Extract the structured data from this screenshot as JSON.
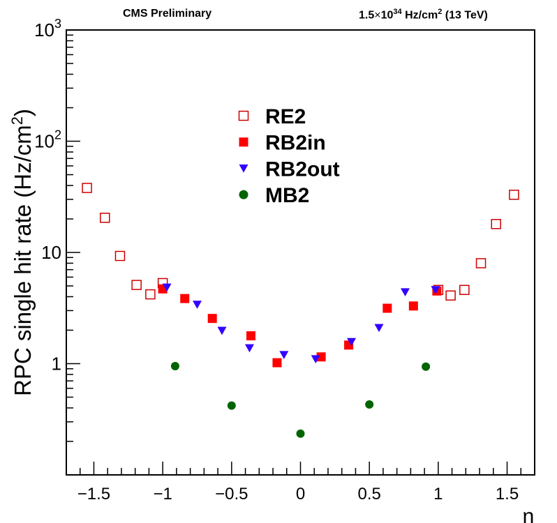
{
  "header": {
    "left": "CMS Preliminary",
    "right_prefix": "1.5",
    "right_times": "×",
    "right_base": "10",
    "right_exp": "34",
    "right_unit": " Hz/cm",
    "right_unit_exp": "2",
    "right_suffix": " (13 TeV)"
  },
  "chart_data": {
    "type": "scatter",
    "xlabel": "η",
    "ylabel": "RPC single hit rate (Hz/cm²)",
    "ylabel_main": "RPC single hit rate (Hz/cm",
    "ylabel_sup": "2",
    "ylabel_close": ")",
    "xlim": [
      -1.7,
      1.7
    ],
    "ylim": [
      0.1,
      1000
    ],
    "yscale": "log",
    "grid": false,
    "legend_position": "top-center",
    "x_ticks": [
      {
        "value": -1.5,
        "label": "−1.5"
      },
      {
        "value": -1,
        "label": "−1"
      },
      {
        "value": -0.5,
        "label": "−0.5"
      },
      {
        "value": 0,
        "label": "0"
      },
      {
        "value": 0.5,
        "label": "0.5"
      },
      {
        "value": 1,
        "label": "1"
      },
      {
        "value": 1.5,
        "label": "1.5"
      }
    ],
    "y_ticks": [
      {
        "value": 1,
        "label": "1",
        "exp": ""
      },
      {
        "value": 10,
        "label": "10",
        "exp": ""
      },
      {
        "value": 100,
        "label": "10",
        "exp": "2"
      },
      {
        "value": 1000,
        "label": "10",
        "exp": "3"
      }
    ],
    "series": [
      {
        "name": "RE2",
        "marker": "open-square",
        "color": "#cc0000",
        "x": [
          -1.55,
          -1.42,
          -1.31,
          -1.19,
          -1.09,
          -1.0,
          1.0,
          1.09,
          1.19,
          1.31,
          1.42,
          1.55
        ],
        "y": [
          38,
          20.5,
          9.3,
          5.1,
          4.2,
          5.3,
          4.6,
          4.1,
          4.6,
          8.0,
          18,
          33
        ]
      },
      {
        "name": "RB2in",
        "marker": "filled-square",
        "color": "#ff0000",
        "x": [
          -1.0,
          -0.84,
          -0.64,
          -0.36,
          -0.17,
          0.15,
          0.35,
          0.63,
          0.82,
          0.99
        ],
        "y": [
          4.7,
          3.85,
          2.55,
          1.78,
          1.02,
          1.15,
          1.47,
          3.15,
          3.3,
          4.5
        ]
      },
      {
        "name": "RB2out",
        "marker": "filled-triangle-down",
        "color": "#3300ff",
        "x": [
          -0.97,
          -0.75,
          -0.57,
          -0.37,
          -0.12,
          0.11,
          0.37,
          0.57,
          0.76,
          0.98
        ],
        "y": [
          4.85,
          3.4,
          1.98,
          1.38,
          1.2,
          1.1,
          1.57,
          2.1,
          4.4,
          4.6
        ]
      },
      {
        "name": "MB2",
        "marker": "filled-circle",
        "color": "#006400",
        "x": [
          -0.91,
          -0.5,
          0.0,
          0.5,
          0.91
        ],
        "y": [
          0.95,
          0.42,
          0.235,
          0.43,
          0.94
        ]
      }
    ]
  }
}
